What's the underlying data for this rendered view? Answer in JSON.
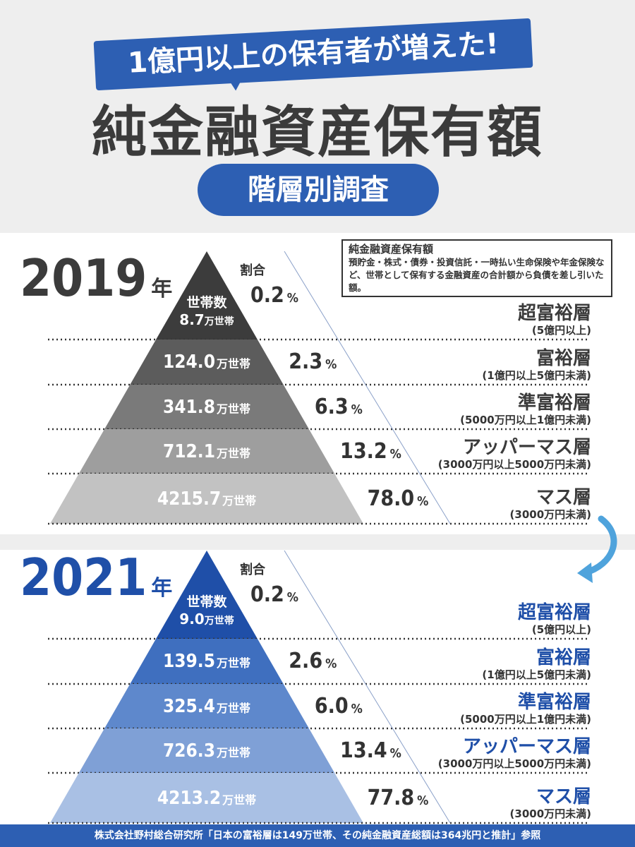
{
  "header": {
    "bubble": "1億円以上の保有者が増えた!",
    "title": "純金融資産保有額",
    "subtitle": "階層別調査"
  },
  "definition": {
    "title": "純金融資産保有額",
    "body": "預貯金・株式・債券・投資信託・一時払い生命保険や年金保険など、世帯として保有する金融資産の合計額から負債を差し引いた額。"
  },
  "ratio_label": "割合",
  "household_label": "世帯数",
  "household_unit": "万世帯",
  "percent_unit": "%",
  "tiers": [
    {
      "name": "超富裕層",
      "range": "(5億円以上)"
    },
    {
      "name": "富裕層",
      "range": "(1億円以上5億円未満)"
    },
    {
      "name": "準富裕層",
      "range": "(5000万円以上1億円未満)"
    },
    {
      "name": "アッパーマス層",
      "range": "(3000万円以上5000万円未満)"
    },
    {
      "name": "マス層",
      "range": "(3000万円未満)"
    }
  ],
  "chart_data": [
    {
      "type": "pyramid",
      "year": "2019",
      "year_suffix": "年",
      "categories": [
        "超富裕層",
        "富裕層",
        "準富裕層",
        "アッパーマス層",
        "マス層"
      ],
      "households": [
        "8.7",
        "124.0",
        "341.8",
        "712.1",
        "4215.7"
      ],
      "shares": [
        "0.2",
        "2.3",
        "6.3",
        "13.2",
        "78.0"
      ],
      "colors": [
        "#3c3c3c",
        "#5c5c5c",
        "#7a7a7a",
        "#9e9e9e",
        "#c2c2c2"
      ],
      "year_color": "#3b3b3b"
    },
    {
      "type": "pyramid",
      "year": "2021",
      "year_suffix": "年",
      "categories": [
        "超富裕層",
        "富裕層",
        "準富裕層",
        "アッパーマス層",
        "マス層"
      ],
      "households": [
        "9.0",
        "139.5",
        "325.4",
        "726.3",
        "4213.2"
      ],
      "shares": [
        "0.2",
        "2.6",
        "6.0",
        "13.4",
        "77.8"
      ],
      "colors": [
        "#1f4fa8",
        "#3f6fbf",
        "#5e88cc",
        "#7fa0d6",
        "#a9c0e4"
      ],
      "year_color": "#1f4fa8"
    }
  ],
  "footer": "株式会社野村総合研究所「日本の富裕層は149万世帯、その純金融資産総額は364兆円と推計」参照"
}
